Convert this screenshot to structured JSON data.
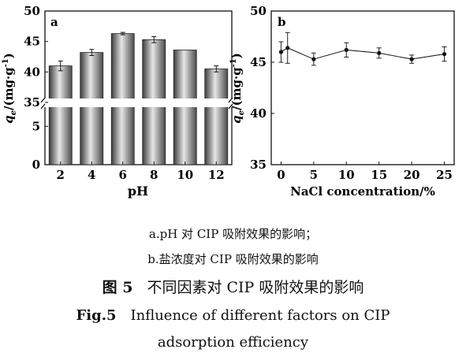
{
  "chart_data": [
    {
      "type": "bar",
      "panel": "a",
      "xlabel": "pH",
      "ylabel_symbol": "q",
      "ylabel_sub": "e",
      "ylabel_unit": "/(mg·g",
      "ylabel_exp": "-1",
      "ylabel_close": ")",
      "categories": [
        "2",
        "4",
        "6",
        "8",
        "10",
        "12"
      ],
      "values": [
        41.0,
        43.2,
        46.3,
        45.3,
        43.6,
        40.5
      ],
      "errors": [
        0.8,
        0.5,
        0.2,
        0.5,
        0.0,
        0.5
      ],
      "yticks": [
        "0",
        "5",
        "35",
        "40",
        "45",
        "50"
      ],
      "ylim_lower": [
        0,
        7.5
      ],
      "ylim_upper": [
        35,
        50
      ],
      "axis_break": true
    },
    {
      "type": "line",
      "panel": "b",
      "xlabel": "NaCl concentration/%",
      "ylabel_symbol": "q",
      "ylabel_sub": "e",
      "ylabel_unit": "/(mg·g",
      "ylabel_exp": "-1",
      "ylabel_close": ")",
      "x": [
        0,
        1,
        5,
        10,
        15,
        20,
        25
      ],
      "y": [
        46.0,
        46.4,
        45.3,
        46.2,
        45.9,
        45.3,
        45.8
      ],
      "errors": [
        1.0,
        1.5,
        0.6,
        0.7,
        0.5,
        0.4,
        0.7
      ],
      "xticks": [
        "0",
        "5",
        "10",
        "15",
        "20",
        "25"
      ],
      "yticks": [
        "35",
        "40",
        "45",
        "50"
      ],
      "ylim": [
        35,
        50
      ],
      "xlim": [
        -1.5,
        26.5
      ]
    }
  ],
  "captions": {
    "sub_a": "a.pH 对 CIP 吸附效果的影响；",
    "sub_b": "b.盐浓度对 CIP 吸附效果的影响",
    "fig_zh_label": "图 5",
    "fig_zh_title": "不同因素对 CIP 吸附效果的影响",
    "fig_en_label": "Fig.5",
    "fig_en_title_line1": "Influence of different factors on CIP",
    "fig_en_title_line2": "adsorption efficiency"
  }
}
